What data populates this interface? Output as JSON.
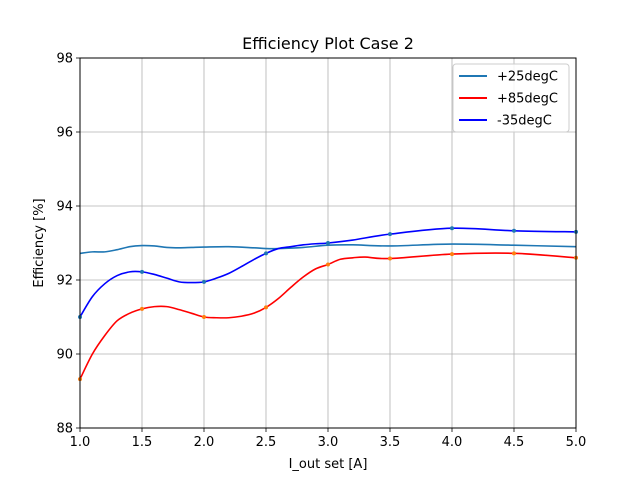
{
  "chart_data": {
    "type": "line",
    "title": "Efficiency Plot Case 2",
    "xlabel": "I_out set [A]",
    "ylabel": "Efficiency [%]",
    "xlim": [
      1.0,
      5.0
    ],
    "ylim": [
      88,
      98
    ],
    "xticks": [
      1.0,
      1.5,
      2.0,
      2.5,
      3.0,
      3.5,
      4.0,
      4.5,
      5.0
    ],
    "xtick_labels": [
      "1.0",
      "1.5",
      "2.0",
      "2.5",
      "3.0",
      "3.5",
      "4.0",
      "4.5",
      "5.0"
    ],
    "yticks": [
      88,
      90,
      92,
      94,
      96,
      98
    ],
    "ytick_labels": [
      "88",
      "90",
      "92",
      "94",
      "96",
      "98"
    ],
    "grid": true,
    "legend_position": "top-right",
    "series": [
      {
        "name": "+25degC",
        "color": "#1f77b4",
        "x": [
          1.0,
          1.1,
          1.2,
          1.3,
          1.4,
          1.5,
          1.6,
          1.7,
          1.8,
          1.9,
          2.0,
          2.2,
          2.4,
          2.5,
          2.6,
          2.8,
          3.0,
          3.2,
          3.5,
          4.0,
          4.5,
          5.0
        ],
        "y": [
          92.72,
          92.76,
          92.76,
          92.82,
          92.9,
          92.93,
          92.92,
          92.88,
          92.87,
          92.88,
          92.89,
          92.9,
          92.87,
          92.85,
          92.85,
          92.88,
          92.94,
          92.95,
          92.92,
          92.97,
          92.94,
          92.9
        ],
        "marker": false
      },
      {
        "name": "+85degC",
        "color": "#ff0000",
        "marker_color": "#ff7f0e",
        "x": [
          1.0,
          1.1,
          1.2,
          1.3,
          1.4,
          1.5,
          1.6,
          1.7,
          1.8,
          1.9,
          2.0,
          2.1,
          2.2,
          2.3,
          2.4,
          2.5,
          2.6,
          2.7,
          2.8,
          2.9,
          3.0,
          3.1,
          3.2,
          3.3,
          3.5,
          4.0,
          4.5,
          5.0
        ],
        "y": [
          89.32,
          90.0,
          90.5,
          90.9,
          91.1,
          91.22,
          91.28,
          91.28,
          91.2,
          91.1,
          91.0,
          90.98,
          90.98,
          91.02,
          91.1,
          91.26,
          91.5,
          91.8,
          92.08,
          92.3,
          92.42,
          92.56,
          92.6,
          92.62,
          92.58,
          92.7,
          92.72,
          92.6
        ],
        "markers_x": [
          1.0,
          1.5,
          2.0,
          2.5,
          3.0,
          3.5,
          4.0,
          4.5,
          5.0
        ],
        "markers_y": [
          89.32,
          91.22,
          91.0,
          91.26,
          92.42,
          92.58,
          92.7,
          92.72,
          92.6
        ]
      },
      {
        "name": "-35degC",
        "color": "#0000ff",
        "marker_color": "#1f77b4",
        "x": [
          1.0,
          1.1,
          1.2,
          1.3,
          1.4,
          1.5,
          1.6,
          1.7,
          1.8,
          1.9,
          2.0,
          2.1,
          2.2,
          2.3,
          2.4,
          2.5,
          2.6,
          2.7,
          2.8,
          2.9,
          3.0,
          3.2,
          3.5,
          4.0,
          4.5,
          5.0
        ],
        "y": [
          91.0,
          91.55,
          91.9,
          92.12,
          92.22,
          92.22,
          92.15,
          92.05,
          91.95,
          91.93,
          91.95,
          92.05,
          92.18,
          92.36,
          92.55,
          92.72,
          92.85,
          92.9,
          92.95,
          92.98,
          93.0,
          93.08,
          93.24,
          93.4,
          93.33,
          93.3
        ],
        "markers_x": [
          1.0,
          1.5,
          2.0,
          2.5,
          3.0,
          3.5,
          4.0,
          4.5,
          5.0
        ],
        "markers_y": [
          91.0,
          92.22,
          91.95,
          92.72,
          93.0,
          93.24,
          93.4,
          93.33,
          93.3
        ]
      }
    ]
  }
}
